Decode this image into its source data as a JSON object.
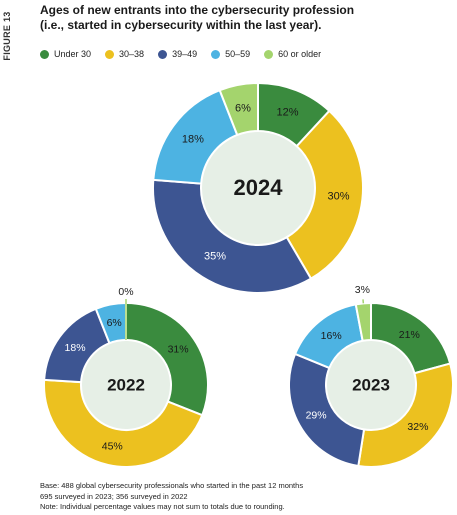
{
  "figure_label": "FIGURE 13",
  "title_line1": "Ages of new entrants into the cybersecurity profession",
  "title_line2": "(i.e., started in cybersecurity within the last year).",
  "colors": {
    "Under 30": "#3a8b3e",
    "30–38": "#ecc11f",
    "39–49": "#3d5592",
    "50–59": "#4db3e2",
    "60 or older": "#a4d46d",
    "center": "#e6efe6"
  },
  "legend": [
    {
      "label": "Under 30",
      "color": "#3a8b3e"
    },
    {
      "label": "30–38",
      "color": "#ecc11f"
    },
    {
      "label": "39–49",
      "color": "#3d5592"
    },
    {
      "label": "50–59",
      "color": "#4db3e2"
    },
    {
      "label": "60 or older",
      "color": "#a4d46d"
    }
  ],
  "chart_data": [
    {
      "type": "pie",
      "title": "2024",
      "categories": [
        "Under 30",
        "30–38",
        "39–49",
        "50–59",
        "60 or older"
      ],
      "values": [
        12,
        30,
        35,
        18,
        6
      ],
      "labels": [
        "12%",
        "30%",
        "35%",
        "18%",
        "6%"
      ]
    },
    {
      "type": "pie",
      "title": "2022",
      "categories": [
        "Under 30",
        "30–38",
        "39–49",
        "50–59",
        "60 or older"
      ],
      "values": [
        31,
        45,
        18,
        6,
        0
      ],
      "labels": [
        "31%",
        "45%",
        "18%",
        "6%",
        "0%"
      ]
    },
    {
      "type": "pie",
      "title": "2023",
      "categories": [
        "Under 30",
        "30–38",
        "39–49",
        "50–59",
        "60 or older"
      ],
      "values": [
        21,
        32,
        29,
        16,
        3
      ],
      "labels": [
        "21%",
        "32%",
        "29%",
        "16%",
        "3%"
      ]
    }
  ],
  "notes": {
    "line1": "Base: 488 global cybersecurity professionals who started in the past 12 months",
    "line2": "695 surveyed in 2023; 356 surveyed in 2022",
    "line3": "Note: Individual percentage values may not sum to totals due to rounding."
  }
}
